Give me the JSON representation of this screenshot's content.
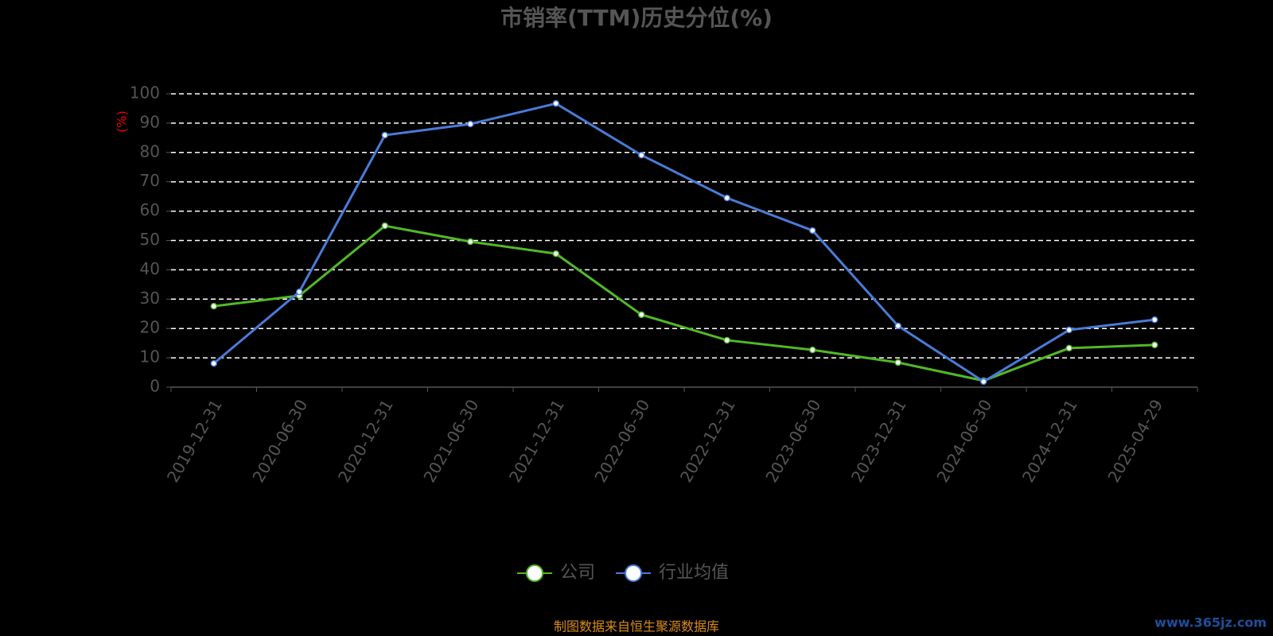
{
  "chart_data": {
    "type": "line",
    "title": "市销率(TTM)历史分位(%)",
    "y_label": "(%)",
    "categories": [
      "2019-12-31",
      "2020-06-30",
      "2020-12-31",
      "2021-06-30",
      "2021-12-31",
      "2022-06-30",
      "2022-12-31",
      "2023-06-30",
      "2023-12-31",
      "2024-06-30",
      "2024-12-31",
      "2025-04-29"
    ],
    "series": [
      {
        "name": "公司",
        "color": "#52b828",
        "values": [
          27.6,
          31.2,
          55,
          49.6,
          45.5,
          24.7,
          16,
          12.7,
          8.4,
          2.2,
          13.3,
          14.4
        ]
      },
      {
        "name": "行业均值",
        "color": "#4a7bd8",
        "values": [
          8.1,
          32.5,
          85.9,
          89.7,
          96.7,
          79.1,
          64.5,
          53.4,
          20.9,
          1.9,
          19.5,
          23
        ]
      }
    ],
    "ylim": [
      0,
      100
    ],
    "yticks": [
      0,
      10,
      20,
      30,
      40,
      50,
      60,
      70,
      80,
      90,
      100
    ],
    "grid": true,
    "legend": "bottom",
    "source": "制图数据来自恒生聚源数据库",
    "watermark": "www.365jz.com"
  }
}
